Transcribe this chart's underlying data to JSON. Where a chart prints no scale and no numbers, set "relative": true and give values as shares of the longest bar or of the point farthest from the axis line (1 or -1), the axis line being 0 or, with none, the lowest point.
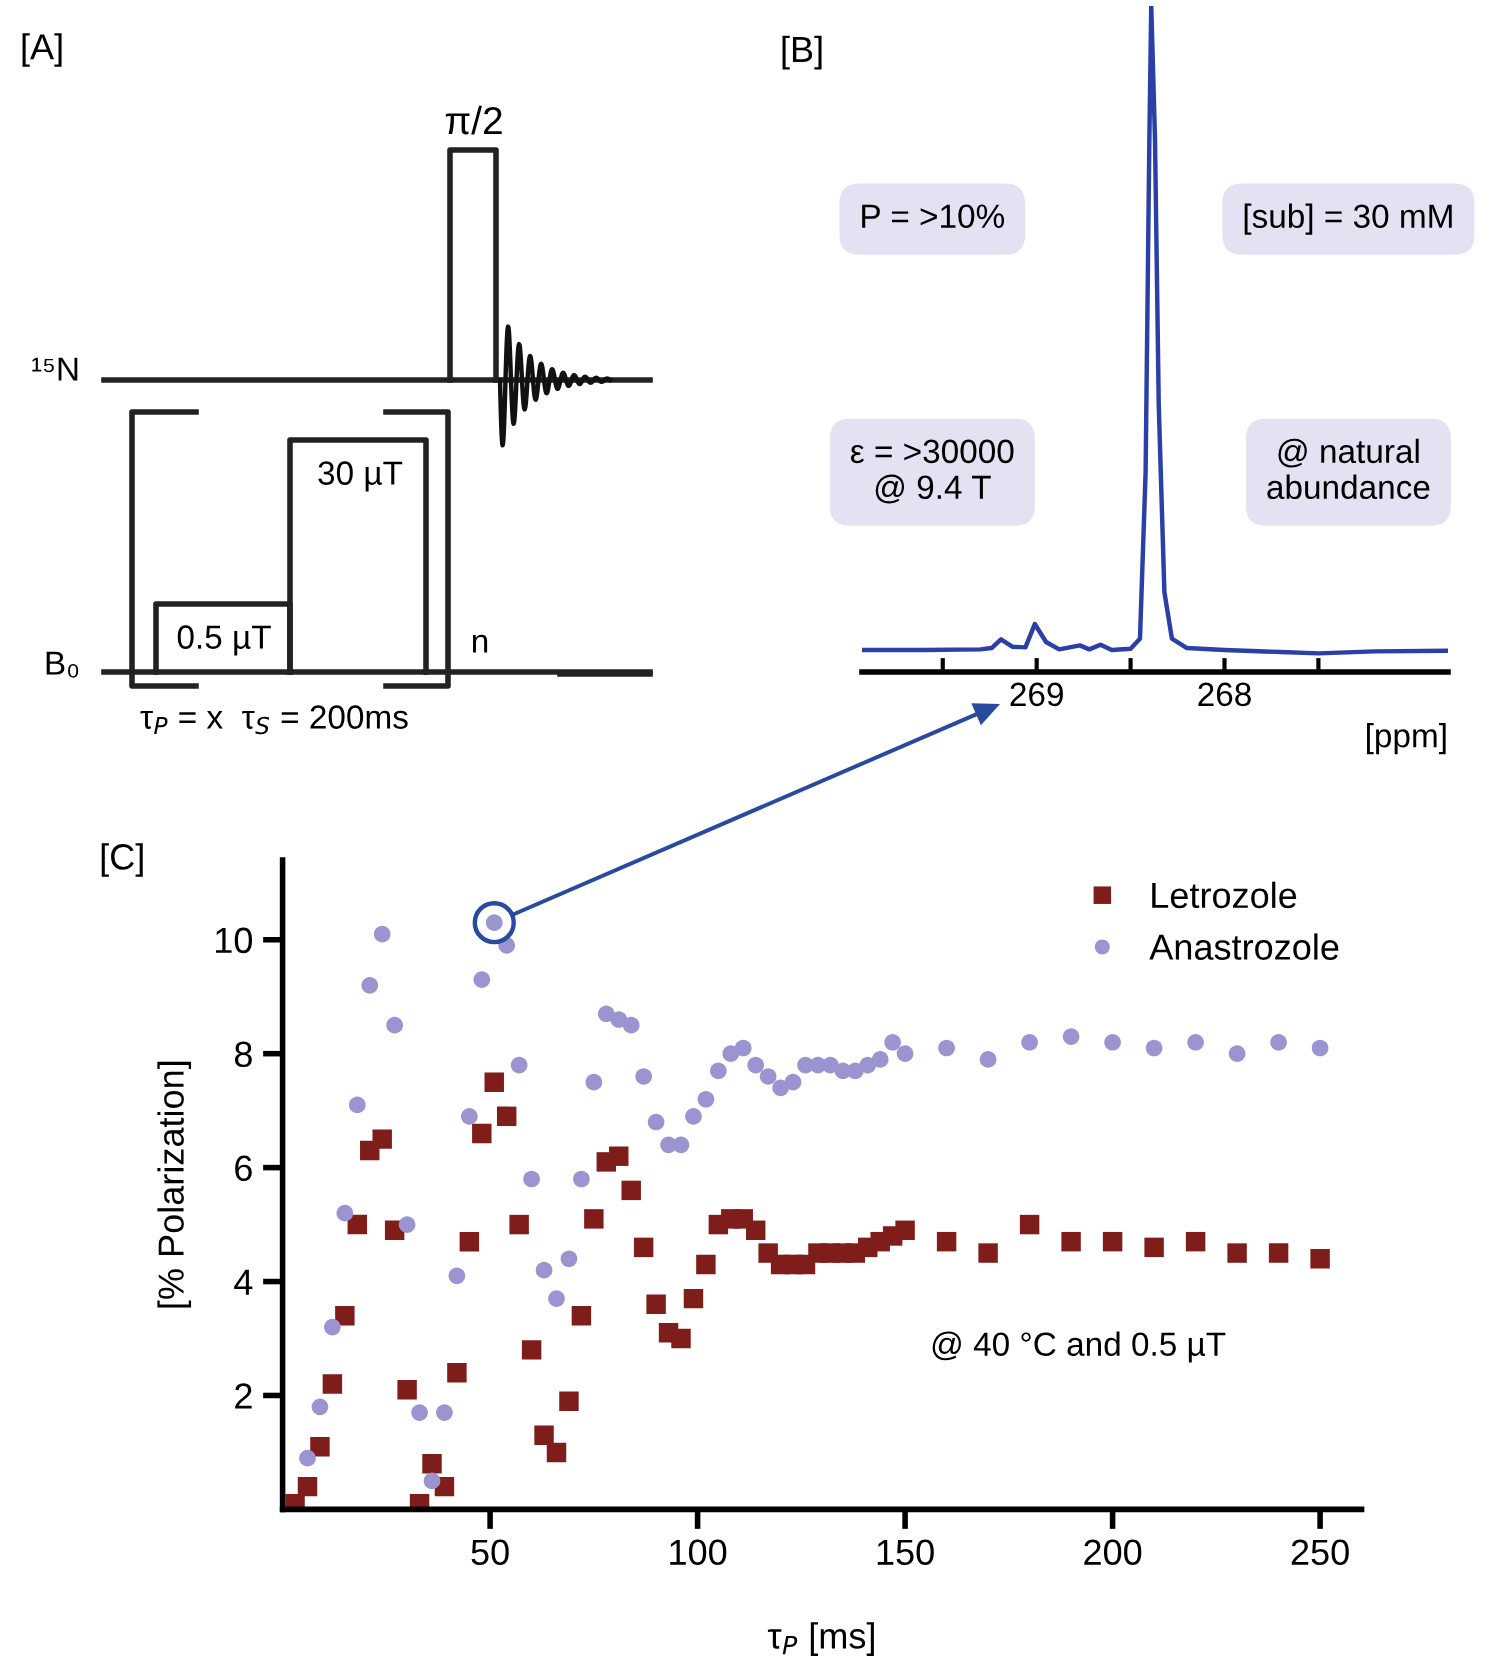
{
  "chart_data": [
    {
      "type": "other",
      "title": "[A]",
      "annotations": [
        "π/2",
        "¹⁵N",
        "30 µT",
        "0.5 µT",
        "B₀",
        "n",
        "τ$_{P}$ = x  τ$_{S}$ = 200ms"
      ]
    },
    {
      "type": "line",
      "title": "[B]",
      "xlabel": "[ppm]",
      "relative": true,
      "xlim": [
        269.93,
        266.81
      ],
      "xticks": [
        {
          "value": 269.5,
          "label": null
        },
        269,
        {
          "value": 268.5,
          "label": null
        },
        268,
        {
          "value": 267.5,
          "label": null
        }
      ],
      "series": [
        {
          "color": "#2a3fa8",
          "x": [
            269.93,
            269.6,
            269.3,
            269.24,
            269.19,
            269.13,
            269.06,
            269.01,
            268.95,
            268.88,
            268.77,
            268.72,
            268.66,
            268.6,
            268.5,
            268.45,
            268.42,
            268.4,
            268.39,
            268.37,
            268.35,
            268.32,
            268.28,
            268.2,
            268.0,
            267.7,
            267.5,
            267.2,
            266.81
          ],
          "values": [
            0.033,
            0.033,
            0.034,
            0.036,
            0.049,
            0.038,
            0.037,
            0.072,
            0.045,
            0.034,
            0.04,
            0.034,
            0.041,
            0.033,
            0.035,
            0.05,
            0.3,
            0.8,
            1.0,
            0.8,
            0.4,
            0.12,
            0.05,
            0.036,
            0.033,
            0.03,
            0.028,
            0.031,
            0.032
          ]
        }
      ],
      "annotations": [
        "P = >10%",
        "[sub] = 30 mM",
        "ε = >30000\n@ 9.4 T",
        "@ natural\nabundance"
      ]
    },
    {
      "type": "scatter",
      "title": "[C]",
      "xlabel": "τ$_{P}$ [ms]",
      "ylabel": "[% Polarization]",
      "xlim": [
        0,
        260
      ],
      "xticks": [
        50,
        100,
        150,
        200,
        250
      ],
      "ylim": [
        0,
        11.4
      ],
      "yticks": [
        2,
        4,
        6,
        8,
        10
      ],
      "grid": false,
      "legend": "top right",
      "annotations": [
        "@ 40 °C and 0.5 µT"
      ],
      "series": [
        {
          "name": "Letrozole",
          "color": "#7f1d1a",
          "marker": "square",
          "x": [
            3,
            6,
            9,
            12,
            15,
            18,
            21,
            24,
            27,
            30,
            33,
            36,
            39,
            42,
            45,
            48,
            51,
            54,
            57,
            60,
            63,
            66,
            69,
            72,
            75,
            78,
            81,
            84,
            87,
            90,
            93,
            96,
            99,
            102,
            105,
            108,
            111,
            114,
            117,
            120,
            123,
            126,
            129,
            132,
            135,
            138,
            141,
            144,
            147,
            150,
            160,
            170,
            180,
            190,
            200,
            210,
            220,
            230,
            240,
            250
          ],
          "values": [
            0.1,
            0.4,
            1.1,
            2.2,
            3.4,
            5.0,
            6.3,
            6.5,
            4.9,
            2.1,
            0.1,
            0.8,
            0.4,
            2.4,
            4.7,
            6.6,
            7.5,
            6.9,
            5.0,
            2.8,
            1.3,
            1.0,
            1.9,
            3.4,
            5.1,
            6.1,
            6.2,
            5.6,
            4.6,
            3.6,
            3.1,
            3.0,
            3.7,
            4.3,
            5.0,
            5.1,
            5.1,
            4.9,
            4.5,
            4.3,
            4.3,
            4.3,
            4.5,
            4.5,
            4.5,
            4.5,
            4.6,
            4.7,
            4.8,
            4.9,
            4.7,
            4.5,
            5.0,
            4.7,
            4.7,
            4.6,
            4.7,
            4.5,
            4.5,
            4.4
          ]
        },
        {
          "name": "Anastrozole",
          "color": "#9a94d0",
          "marker": "circle",
          "x": [
            6,
            9,
            12,
            15,
            18,
            21,
            24,
            27,
            30,
            33,
            36,
            39,
            42,
            45,
            48,
            51,
            54,
            57,
            60,
            63,
            66,
            69,
            72,
            75,
            78,
            81,
            84,
            87,
            90,
            93,
            96,
            99,
            102,
            105,
            108,
            111,
            114,
            117,
            120,
            123,
            126,
            129,
            132,
            135,
            138,
            141,
            144,
            147,
            150,
            160,
            170,
            180,
            190,
            200,
            210,
            220,
            230,
            240,
            250
          ],
          "values": [
            0.9,
            1.8,
            3.2,
            5.2,
            7.1,
            9.2,
            10.1,
            8.5,
            5.0,
            1.7,
            0.5,
            1.7,
            4.1,
            6.9,
            9.3,
            10.3,
            9.9,
            7.8,
            5.8,
            4.2,
            3.7,
            4.4,
            5.8,
            7.5,
            8.7,
            8.6,
            8.5,
            7.6,
            6.8,
            6.4,
            6.4,
            6.9,
            7.2,
            7.7,
            8.0,
            8.1,
            7.8,
            7.6,
            7.4,
            7.5,
            7.8,
            7.8,
            7.8,
            7.7,
            7.7,
            7.8,
            7.9,
            8.2,
            8.0,
            8.1,
            7.9,
            8.2,
            8.3,
            8.2,
            8.1,
            8.2,
            8.0,
            8.2,
            8.1
          ]
        }
      ]
    }
  ]
}
